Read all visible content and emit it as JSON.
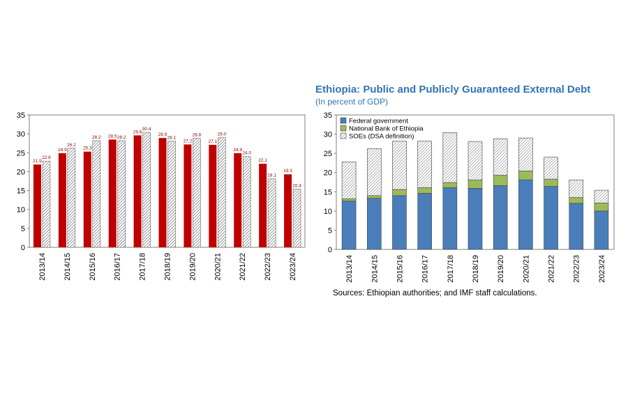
{
  "chart_data": [
    {
      "type": "bar",
      "categories": [
        "2013/14",
        "2014/15",
        "2015/16",
        "2016/17",
        "2017/18",
        "2018/19",
        "2019/20",
        "2020/21",
        "2021/22",
        "2022/23",
        "2023/24"
      ],
      "series": [
        {
          "values": [
            21.9,
            24.9,
            25.3,
            28.5,
            29.6,
            28.9,
            27.2,
            27.1,
            24.9,
            22.1,
            19.3
          ],
          "color": "#c00000",
          "pattern": "solid"
        },
        {
          "values": [
            22.8,
            26.2,
            28.2,
            28.2,
            30.4,
            28.1,
            28.8,
            29.0,
            24.0,
            18.1,
            15.4
          ],
          "color": "#808080",
          "pattern": "hatched"
        }
      ],
      "data_labels": {
        "series_a": [
          "21.9",
          "24.9",
          "25.3",
          "28.5",
          "29.6",
          "28.9",
          "27.2",
          "27.1",
          "24.9",
          "22.1",
          "19.3"
        ],
        "series_b": [
          "22.8",
          "26.2",
          "28.2",
          "28.2",
          "30.4",
          "28.1",
          "28.8",
          "29.0",
          "24.0",
          "18.1",
          "15.4"
        ],
        "color": "#8b0000"
      },
      "ylim": [
        0,
        35
      ],
      "yticks": [
        "0",
        "5",
        "10",
        "15",
        "20",
        "25",
        "30",
        "35"
      ],
      "grid": false
    },
    {
      "type": "bar",
      "stacked": true,
      "title": "Ethiopia: Public and Publicly Guaranteed External Debt",
      "subtitle": "(In percent of GDP)",
      "categories": [
        "2013/14",
        "2014/15",
        "2015/16",
        "2016/17",
        "2017/18",
        "2018/19",
        "2019/20",
        "2020/21",
        "2021/22",
        "2022/23",
        "2023/24"
      ],
      "series": [
        {
          "name": "Federal government",
          "values": [
            12.6,
            13.3,
            14.0,
            14.6,
            16.1,
            15.9,
            16.6,
            18.1,
            16.4,
            12.0,
            10.0
          ],
          "color": "#4a7ebb"
        },
        {
          "name": "National Bank of Ethiopia",
          "values": [
            0.6,
            0.7,
            1.6,
            1.5,
            1.3,
            2.2,
            2.7,
            2.3,
            1.9,
            1.5,
            2.1
          ],
          "color": "#9bbb59"
        },
        {
          "name": "SOEs (DSA definition)",
          "values": [
            9.6,
            12.2,
            12.6,
            12.1,
            13.0,
            10.0,
            9.5,
            8.6,
            5.7,
            4.6,
            3.3
          ],
          "color": "#a6a6a6",
          "pattern": "hatched"
        }
      ],
      "legend_position": "top-left",
      "ylim": [
        0,
        35
      ],
      "yticks": [
        "0",
        "5",
        "10",
        "15",
        "20",
        "25",
        "30",
        "35"
      ],
      "grid": false,
      "source_note": "Sources: Ethiopian authorities; and IMF staff calculations."
    }
  ]
}
